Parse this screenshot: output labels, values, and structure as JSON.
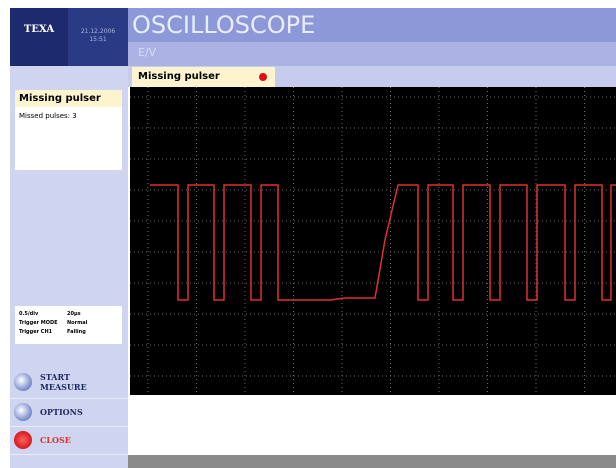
{
  "header": {
    "logo": "TEXA",
    "date": "21.12.2006",
    "time": "15:51",
    "title": "OSCILLOSCOPE",
    "subtitle": "E/V"
  },
  "tab": {
    "label": "Missing pulser"
  },
  "panel": {
    "title": "Missing pulser",
    "line": "Missed pulses:  3"
  },
  "info": {
    "rows": [
      [
        "0.5/div",
        "20µs"
      ],
      [
        "Trigger MODE",
        "Normal"
      ],
      [
        "Trigger CH1",
        "Falling"
      ]
    ]
  },
  "buttons": [
    {
      "line1": "START",
      "line2": "MEASURE"
    },
    {
      "line1": "OPTIONS"
    },
    {
      "line1": "CLOSE"
    }
  ]
}
